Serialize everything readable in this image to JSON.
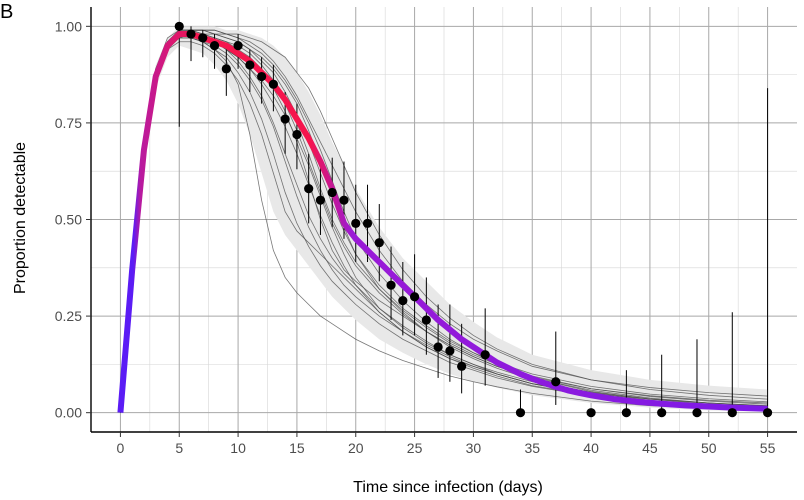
{
  "panel_tag": "B",
  "chart_data": {
    "type": "line",
    "xlabel": "Time since infection (days)",
    "ylabel": "Proportion detectable",
    "xlim": [
      -2.5,
      57.5
    ],
    "ylim": [
      -0.05,
      1.05
    ],
    "xticks": [
      0,
      5,
      10,
      15,
      20,
      25,
      30,
      35,
      40,
      45,
      50,
      55
    ],
    "yticks": [
      0.0,
      0.25,
      0.5,
      0.75,
      1.0
    ],
    "ytick_labels": [
      "0.00",
      "0.25",
      "0.50",
      "0.75",
      "1.00"
    ],
    "grid": true,
    "legend": "none",
    "colors": {
      "early": "#5b1cf5",
      "peak": "#f5154d",
      "late": "#7a1ae8",
      "ribbon": "#e8e8e8",
      "draws": "#4a4a4a",
      "points": "#000000"
    },
    "fit": {
      "x": [
        0,
        1,
        2,
        3,
        4,
        5,
        6,
        7,
        8,
        9,
        10,
        11,
        12,
        13,
        14,
        15,
        16,
        17,
        18,
        19,
        20,
        21,
        22,
        23,
        24,
        25,
        26,
        27,
        28,
        29,
        30,
        31,
        32,
        33,
        34,
        35,
        36,
        37,
        38,
        39,
        40,
        42,
        44,
        46,
        48,
        50,
        52,
        55
      ],
      "y": [
        0.0,
        0.37,
        0.68,
        0.87,
        0.95,
        0.98,
        0.98,
        0.97,
        0.96,
        0.95,
        0.93,
        0.91,
        0.88,
        0.85,
        0.81,
        0.76,
        0.71,
        0.65,
        0.58,
        0.49,
        0.45,
        0.42,
        0.39,
        0.36,
        0.33,
        0.3,
        0.27,
        0.24,
        0.215,
        0.19,
        0.17,
        0.15,
        0.13,
        0.115,
        0.1,
        0.088,
        0.077,
        0.067,
        0.058,
        0.051,
        0.045,
        0.035,
        0.028,
        0.023,
        0.019,
        0.016,
        0.013,
        0.01
      ]
    },
    "ribbon": {
      "x": [
        0,
        1,
        2,
        3,
        4,
        5,
        6,
        7,
        8,
        9,
        10,
        11,
        12,
        13,
        14,
        15,
        16,
        17,
        18,
        19,
        20,
        22,
        24,
        26,
        28,
        30,
        32,
        35,
        40,
        45,
        50,
        55
      ],
      "lower": [
        0.0,
        0.35,
        0.65,
        0.84,
        0.92,
        0.95,
        0.94,
        0.93,
        0.9,
        0.86,
        0.8,
        0.72,
        0.62,
        0.52,
        0.46,
        0.42,
        0.38,
        0.34,
        0.3,
        0.27,
        0.24,
        0.19,
        0.155,
        0.125,
        0.1,
        0.08,
        0.065,
        0.045,
        0.025,
        0.013,
        0.006,
        0.002
      ],
      "upper": [
        0.0,
        0.39,
        0.71,
        0.9,
        0.97,
        1.0,
        1.0,
        1.0,
        1.0,
        0.99,
        0.99,
        0.98,
        0.97,
        0.95,
        0.92,
        0.88,
        0.83,
        0.77,
        0.7,
        0.64,
        0.58,
        0.48,
        0.4,
        0.34,
        0.28,
        0.235,
        0.195,
        0.15,
        0.11,
        0.085,
        0.07,
        0.06
      ]
    },
    "draws_x": [
      0,
      1,
      2,
      3,
      4,
      5,
      6,
      7,
      8,
      9,
      10,
      11,
      12,
      13,
      14,
      15,
      16,
      17,
      18,
      19,
      20,
      22,
      24,
      26,
      28,
      30,
      32,
      35,
      40,
      45,
      50,
      55
    ],
    "draws": [
      [
        0.0,
        0.37,
        0.67,
        0.86,
        0.94,
        0.96,
        0.96,
        0.95,
        0.93,
        0.9,
        0.86,
        0.8,
        0.72,
        0.62,
        0.52,
        0.47,
        0.44,
        0.41,
        0.38,
        0.35,
        0.32,
        0.26,
        0.21,
        0.17,
        0.14,
        0.115,
        0.095,
        0.07,
        0.045,
        0.028,
        0.018,
        0.012
      ],
      [
        0.0,
        0.37,
        0.69,
        0.88,
        0.96,
        0.99,
        0.99,
        0.99,
        0.98,
        0.98,
        0.97,
        0.95,
        0.93,
        0.9,
        0.86,
        0.81,
        0.75,
        0.68,
        0.6,
        0.52,
        0.45,
        0.36,
        0.29,
        0.235,
        0.19,
        0.155,
        0.125,
        0.09,
        0.055,
        0.035,
        0.022,
        0.015
      ],
      [
        0.0,
        0.36,
        0.68,
        0.87,
        0.95,
        0.98,
        0.98,
        0.97,
        0.96,
        0.94,
        0.92,
        0.89,
        0.85,
        0.8,
        0.74,
        0.67,
        0.59,
        0.51,
        0.44,
        0.38,
        0.33,
        0.26,
        0.21,
        0.17,
        0.14,
        0.12,
        0.1,
        0.075,
        0.05,
        0.035,
        0.025,
        0.018
      ],
      [
        0.0,
        0.38,
        0.7,
        0.89,
        0.97,
        0.99,
        0.99,
        0.99,
        0.99,
        0.98,
        0.97,
        0.96,
        0.94,
        0.91,
        0.87,
        0.82,
        0.76,
        0.7,
        0.64,
        0.58,
        0.52,
        0.42,
        0.34,
        0.28,
        0.23,
        0.19,
        0.16,
        0.12,
        0.085,
        0.065,
        0.052,
        0.043
      ],
      [
        0.0,
        0.37,
        0.68,
        0.87,
        0.95,
        0.98,
        0.98,
        0.97,
        0.96,
        0.95,
        0.93,
        0.91,
        0.88,
        0.84,
        0.78,
        0.7,
        0.6,
        0.5,
        0.42,
        0.37,
        0.34,
        0.29,
        0.25,
        0.21,
        0.175,
        0.145,
        0.12,
        0.09,
        0.058,
        0.038,
        0.025,
        0.017
      ],
      [
        0.0,
        0.36,
        0.67,
        0.86,
        0.94,
        0.97,
        0.97,
        0.96,
        0.94,
        0.91,
        0.85,
        0.72,
        0.55,
        0.42,
        0.35,
        0.31,
        0.28,
        0.25,
        0.23,
        0.21,
        0.19,
        0.16,
        0.135,
        0.115,
        0.095,
        0.08,
        0.067,
        0.05,
        0.03,
        0.018,
        0.011,
        0.006
      ],
      [
        0.0,
        0.38,
        0.7,
        0.89,
        0.96,
        0.99,
        0.99,
        0.99,
        0.98,
        0.97,
        0.96,
        0.94,
        0.92,
        0.89,
        0.85,
        0.8,
        0.73,
        0.65,
        0.56,
        0.48,
        0.41,
        0.32,
        0.26,
        0.21,
        0.175,
        0.145,
        0.12,
        0.092,
        0.062,
        0.044,
        0.032,
        0.025
      ],
      [
        0.0,
        0.37,
        0.69,
        0.88,
        0.96,
        0.98,
        0.99,
        0.98,
        0.97,
        0.96,
        0.94,
        0.92,
        0.89,
        0.85,
        0.8,
        0.73,
        0.65,
        0.57,
        0.49,
        0.43,
        0.38,
        0.31,
        0.255,
        0.21,
        0.17,
        0.14,
        0.115,
        0.085,
        0.052,
        0.032,
        0.02,
        0.013
      ],
      [
        0.0,
        0.37,
        0.68,
        0.87,
        0.95,
        0.97,
        0.97,
        0.96,
        0.95,
        0.93,
        0.9,
        0.86,
        0.81,
        0.74,
        0.65,
        0.56,
        0.48,
        0.42,
        0.37,
        0.33,
        0.3,
        0.25,
        0.21,
        0.175,
        0.145,
        0.12,
        0.1,
        0.075,
        0.048,
        0.03,
        0.019,
        0.012
      ],
      [
        0.0,
        0.38,
        0.7,
        0.89,
        0.96,
        0.99,
        0.99,
        0.99,
        0.99,
        0.98,
        0.98,
        0.97,
        0.96,
        0.94,
        0.92,
        0.88,
        0.84,
        0.78,
        0.71,
        0.64,
        0.57,
        0.46,
        0.37,
        0.3,
        0.245,
        0.2,
        0.165,
        0.125,
        0.085,
        0.06,
        0.045,
        0.035
      ],
      [
        0.0,
        0.36,
        0.68,
        0.87,
        0.95,
        0.98,
        0.98,
        0.97,
        0.96,
        0.94,
        0.92,
        0.89,
        0.86,
        0.82,
        0.77,
        0.71,
        0.64,
        0.56,
        0.48,
        0.41,
        0.35,
        0.27,
        0.22,
        0.18,
        0.15,
        0.125,
        0.105,
        0.08,
        0.053,
        0.036,
        0.025,
        0.018
      ],
      [
        0.0,
        0.37,
        0.69,
        0.88,
        0.96,
        0.98,
        0.98,
        0.98,
        0.97,
        0.96,
        0.95,
        0.93,
        0.9,
        0.86,
        0.81,
        0.75,
        0.67,
        0.58,
        0.5,
        0.44,
        0.39,
        0.32,
        0.265,
        0.22,
        0.18,
        0.15,
        0.125,
        0.095,
        0.062,
        0.042,
        0.03,
        0.022
      ],
      [
        0.0,
        0.37,
        0.68,
        0.87,
        0.95,
        0.97,
        0.97,
        0.96,
        0.94,
        0.92,
        0.88,
        0.83,
        0.76,
        0.67,
        0.57,
        0.49,
        0.43,
        0.38,
        0.34,
        0.31,
        0.28,
        0.23,
        0.19,
        0.16,
        0.13,
        0.11,
        0.09,
        0.068,
        0.043,
        0.027,
        0.017,
        0.011
      ],
      [
        0.0,
        0.38,
        0.69,
        0.88,
        0.96,
        0.98,
        0.99,
        0.98,
        0.98,
        0.97,
        0.96,
        0.94,
        0.91,
        0.88,
        0.83,
        0.77,
        0.7,
        0.62,
        0.54,
        0.47,
        0.41,
        0.33,
        0.27,
        0.225,
        0.185,
        0.155,
        0.13,
        0.1,
        0.068,
        0.048,
        0.036,
        0.028
      ],
      [
        0.0,
        0.37,
        0.68,
        0.87,
        0.95,
        0.97,
        0.98,
        0.97,
        0.96,
        0.94,
        0.91,
        0.87,
        0.82,
        0.75,
        0.67,
        0.59,
        0.51,
        0.45,
        0.4,
        0.36,
        0.33,
        0.27,
        0.225,
        0.185,
        0.15,
        0.125,
        0.1,
        0.075,
        0.046,
        0.028,
        0.017,
        0.01
      ]
    ],
    "points": [
      {
        "x": 5,
        "y": 1.0,
        "lo": 0.74,
        "hi": 1.0
      },
      {
        "x": 6,
        "y": 0.98,
        "lo": 0.91,
        "hi": 1.0
      },
      {
        "x": 7,
        "y": 0.97,
        "lo": 0.92,
        "hi": 0.99
      },
      {
        "x": 8,
        "y": 0.95,
        "lo": 0.89,
        "hi": 0.98
      },
      {
        "x": 9,
        "y": 0.89,
        "lo": 0.82,
        "hi": 0.94
      },
      {
        "x": 10,
        "y": 0.95,
        "lo": 0.89,
        "hi": 0.98
      },
      {
        "x": 11,
        "y": 0.9,
        "lo": 0.83,
        "hi": 0.94
      },
      {
        "x": 12,
        "y": 0.87,
        "lo": 0.8,
        "hi": 0.92
      },
      {
        "x": 13,
        "y": 0.85,
        "lo": 0.78,
        "hi": 0.9
      },
      {
        "x": 14,
        "y": 0.76,
        "lo": 0.67,
        "hi": 0.83
      },
      {
        "x": 15,
        "y": 0.72,
        "lo": 0.63,
        "hi": 0.8
      },
      {
        "x": 16,
        "y": 0.58,
        "lo": 0.49,
        "hi": 0.67
      },
      {
        "x": 17,
        "y": 0.55,
        "lo": 0.46,
        "hi": 0.64
      },
      {
        "x": 18,
        "y": 0.57,
        "lo": 0.48,
        "hi": 0.66
      },
      {
        "x": 19,
        "y": 0.55,
        "lo": 0.45,
        "hi": 0.65
      },
      {
        "x": 20,
        "y": 0.49,
        "lo": 0.39,
        "hi": 0.59
      },
      {
        "x": 21,
        "y": 0.49,
        "lo": 0.39,
        "hi": 0.59
      },
      {
        "x": 22,
        "y": 0.44,
        "lo": 0.34,
        "hi": 0.54
      },
      {
        "x": 23,
        "y": 0.33,
        "lo": 0.24,
        "hi": 0.43
      },
      {
        "x": 24,
        "y": 0.29,
        "lo": 0.2,
        "hi": 0.39
      },
      {
        "x": 25,
        "y": 0.3,
        "lo": 0.2,
        "hi": 0.41
      },
      {
        "x": 26,
        "y": 0.24,
        "lo": 0.15,
        "hi": 0.35
      },
      {
        "x": 27,
        "y": 0.17,
        "lo": 0.09,
        "hi": 0.28
      },
      {
        "x": 28,
        "y": 0.16,
        "lo": 0.08,
        "hi": 0.28
      },
      {
        "x": 29,
        "y": 0.12,
        "lo": 0.05,
        "hi": 0.23
      },
      {
        "x": 31,
        "y": 0.15,
        "lo": 0.07,
        "hi": 0.27
      },
      {
        "x": 34,
        "y": 0.0,
        "lo": 0.0,
        "hi": 0.06
      },
      {
        "x": 37,
        "y": 0.08,
        "lo": 0.02,
        "hi": 0.21
      },
      {
        "x": 40,
        "y": 0.0,
        "lo": 0.0,
        "hi": 0.0
      },
      {
        "x": 43,
        "y": 0.0,
        "lo": 0.0,
        "hi": 0.11
      },
      {
        "x": 46,
        "y": 0.0,
        "lo": 0.0,
        "hi": 0.15
      },
      {
        "x": 49,
        "y": 0.0,
        "lo": 0.0,
        "hi": 0.19
      },
      {
        "x": 52,
        "y": 0.0,
        "lo": 0.0,
        "hi": 0.26
      },
      {
        "x": 55,
        "y": 0.0,
        "lo": 0.0,
        "hi": 0.84
      }
    ]
  }
}
